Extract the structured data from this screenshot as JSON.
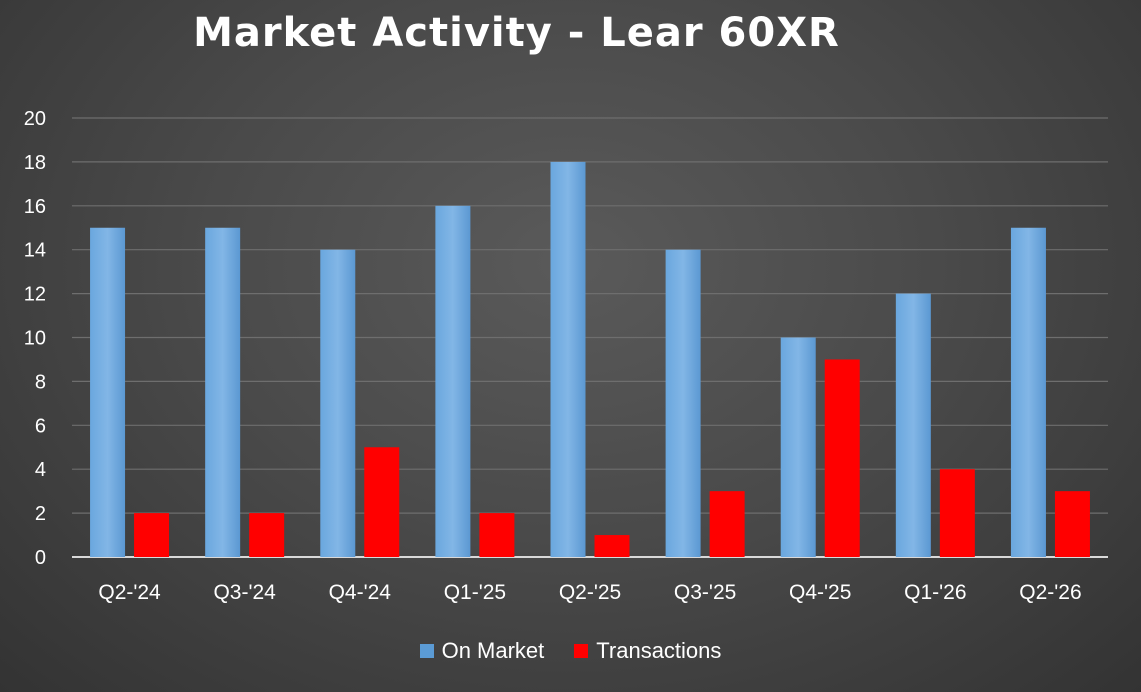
{
  "chart_data": {
    "type": "bar",
    "title": "Market Activity - Lear 60XR",
    "categories": [
      "Q2-'24",
      "Q3-'24",
      "Q4-'24",
      "Q1-'25",
      "Q2-'25",
      "Q3-'25",
      "Q4-'25",
      "Q1-'26",
      "Q2-'26"
    ],
    "series": [
      {
        "name": "On Market",
        "values": [
          15,
          15,
          14,
          16,
          18,
          14,
          10,
          12,
          15
        ],
        "color": "#5b9bd5"
      },
      {
        "name": "Transactions",
        "values": [
          2,
          2,
          5,
          2,
          1,
          3,
          9,
          4,
          3
        ],
        "color": "#ff0000"
      }
    ],
    "yticks": [
      "0",
      "2",
      "4",
      "6",
      "8",
      "10",
      "12",
      "14",
      "16",
      "18",
      "20"
    ],
    "ylim": [
      0,
      20
    ],
    "grid": true,
    "legend_position": "bottom"
  }
}
